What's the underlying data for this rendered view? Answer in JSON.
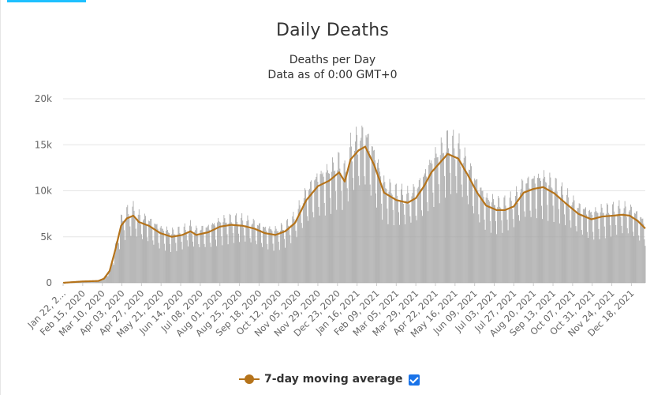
{
  "page": {
    "accent": "#1ec0ff"
  },
  "chart_data": {
    "type": "bar",
    "title": "Daily Deaths",
    "subtitle_lines": [
      "Deaths per Day",
      "Data as of 0:00 GMT+0"
    ],
    "xlabel": "",
    "ylabel": "",
    "ylim": [
      0,
      20000
    ],
    "yticks": [
      0,
      5000,
      10000,
      15000,
      20000
    ],
    "ytick_labels": [
      "0",
      "5k",
      "10k",
      "15k",
      "20k"
    ],
    "x_start": "2020-01-22",
    "x_end": "2022-01-04",
    "xtick_labels": [
      "Jan 22, 2…",
      "Feb 15, 2020",
      "Mar 10, 2020",
      "Apr 03, 2020",
      "Apr 27, 2020",
      "May 21, 2020",
      "Jun 14, 2020",
      "Jul 08, 2020",
      "Aug 01, 2020",
      "Aug 25, 2020",
      "Sep 18, 2020",
      "Oct 12, 2020",
      "Nov 05, 2020",
      "Nov 29, 2020",
      "Dec 23, 2020",
      "Jan 16, 2021",
      "Feb 09, 2021",
      "Mar 05, 2021",
      "Mar 29, 2021",
      "Apr 22, 2021",
      "May 16, 2021",
      "Jun 09, 2021",
      "Jul 03, 2021",
      "Jul 27, 2021",
      "Aug 20, 2021",
      "Sep 13, 2021",
      "Oct 07, 2021",
      "Oct 31, 2021",
      "Nov 24, 2021",
      "Dec 18, 2021"
    ],
    "grid": true,
    "bar_color": "#a6a6a6",
    "line_color": "#b5731a",
    "series": [
      {
        "name": "Daily Deaths",
        "kind": "bar",
        "note": "daily values approximated from the 7-day moving average (weekly cycle visible)",
        "daily_approximation": true
      },
      {
        "name": "7-day moving average",
        "kind": "line",
        "points": [
          [
            "2020-01-22",
            0
          ],
          [
            "2020-02-15",
            150
          ],
          [
            "2020-03-05",
            200
          ],
          [
            "2020-03-12",
            450
          ],
          [
            "2020-03-19",
            1300
          ],
          [
            "2020-03-26",
            3600
          ],
          [
            "2020-04-02",
            6200
          ],
          [
            "2020-04-09",
            7000
          ],
          [
            "2020-04-17",
            7300
          ],
          [
            "2020-04-24",
            6600
          ],
          [
            "2020-05-06",
            6200
          ],
          [
            "2020-05-20",
            5400
          ],
          [
            "2020-06-03",
            5000
          ],
          [
            "2020-06-16",
            5200
          ],
          [
            "2020-06-26",
            5600
          ],
          [
            "2020-07-03",
            5200
          ],
          [
            "2020-07-18",
            5500
          ],
          [
            "2020-08-01",
            6100
          ],
          [
            "2020-08-15",
            6300
          ],
          [
            "2020-08-29",
            6200
          ],
          [
            "2020-09-12",
            5900
          ],
          [
            "2020-09-25",
            5400
          ],
          [
            "2020-10-08",
            5200
          ],
          [
            "2020-10-20",
            5600
          ],
          [
            "2020-11-01",
            6500
          ],
          [
            "2020-11-15",
            9000
          ],
          [
            "2020-11-29",
            10500
          ],
          [
            "2020-12-13",
            11100
          ],
          [
            "2020-12-25",
            12000
          ],
          [
            "2021-01-01",
            11000
          ],
          [
            "2021-01-08",
            13400
          ],
          [
            "2021-01-18",
            14400
          ],
          [
            "2021-01-26",
            14800
          ],
          [
            "2021-02-06",
            12800
          ],
          [
            "2021-02-18",
            9800
          ],
          [
            "2021-03-05",
            9000
          ],
          [
            "2021-03-19",
            8700
          ],
          [
            "2021-03-29",
            9200
          ],
          [
            "2021-04-08",
            10500
          ],
          [
            "2021-04-17",
            12000
          ],
          [
            "2021-04-27",
            13000
          ],
          [
            "2021-05-07",
            14000
          ],
          [
            "2021-05-20",
            13500
          ],
          [
            "2021-06-02",
            11500
          ],
          [
            "2021-06-12",
            9800
          ],
          [
            "2021-06-23",
            8400
          ],
          [
            "2021-07-06",
            7900
          ],
          [
            "2021-07-16",
            7900
          ],
          [
            "2021-07-27",
            8300
          ],
          [
            "2021-08-08",
            9800
          ],
          [
            "2021-08-20",
            10200
          ],
          [
            "2021-09-01",
            10400
          ],
          [
            "2021-09-15",
            9700
          ],
          [
            "2021-09-29",
            8600
          ],
          [
            "2021-10-14",
            7500
          ],
          [
            "2021-10-30",
            6900
          ],
          [
            "2021-11-12",
            7200
          ],
          [
            "2021-11-26",
            7300
          ],
          [
            "2021-12-06",
            7400
          ],
          [
            "2021-12-16",
            7300
          ],
          [
            "2021-12-26",
            6700
          ],
          [
            "2022-01-04",
            5900
          ]
        ]
      }
    ],
    "legend": {
      "position": "bottom-center",
      "label": "7-day moving average",
      "checked": true
    }
  }
}
